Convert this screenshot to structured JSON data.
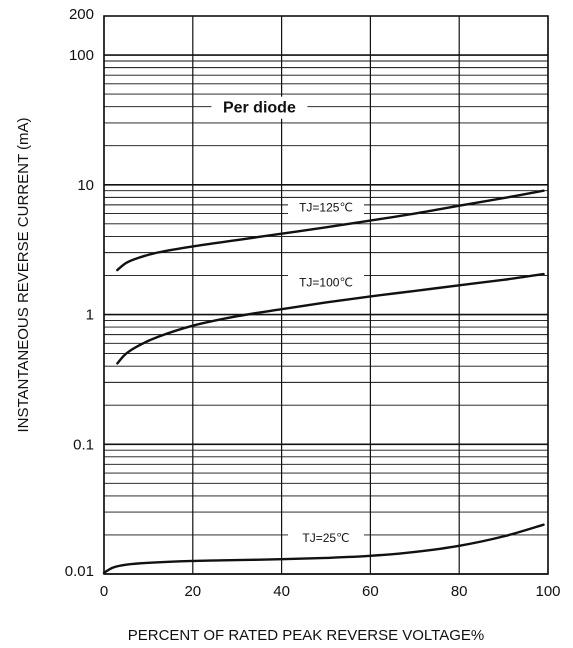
{
  "chart_data": {
    "type": "line",
    "title": "",
    "xlabel": "PERCENT OF RATED PEAK REVERSE VOLTAGE%",
    "ylabel": "INSTANTANEOUS REVERSE CURRENT (mA)",
    "xlim": [
      0,
      100
    ],
    "ylim": [
      0.01,
      200
    ],
    "yscale": "log",
    "grid": true,
    "x_ticks": [
      0,
      20,
      40,
      60,
      80,
      100
    ],
    "x_tick_labels": [
      "0",
      "20",
      "40",
      "60",
      "80",
      "100"
    ],
    "y_ticks": [
      0.01,
      0.1,
      1,
      10,
      100,
      200
    ],
    "y_tick_labels": [
      "0.01",
      "0.1",
      "1",
      "10",
      "100",
      "200"
    ],
    "annotation": "Per diode",
    "series": [
      {
        "name": "TJ=125℃",
        "x": [
          3,
          5,
          8,
          12,
          20,
          30,
          40,
          50,
          60,
          70,
          80,
          90,
          99
        ],
        "y": [
          2.2,
          2.5,
          2.75,
          3.0,
          3.35,
          3.75,
          4.2,
          4.7,
          5.3,
          6.0,
          6.9,
          7.9,
          9.0
        ]
      },
      {
        "name": "TJ=100℃",
        "x": [
          3,
          5,
          8,
          12,
          20,
          30,
          40,
          50,
          60,
          70,
          80,
          90,
          99
        ],
        "y": [
          0.42,
          0.5,
          0.58,
          0.67,
          0.82,
          0.97,
          1.1,
          1.24,
          1.38,
          1.52,
          1.68,
          1.85,
          2.05
        ]
      },
      {
        "name": "TJ=25℃",
        "x": [
          0,
          2,
          5,
          10,
          20,
          30,
          40,
          50,
          60,
          70,
          80,
          90,
          99
        ],
        "y": [
          0.0102,
          0.0112,
          0.0118,
          0.0122,
          0.0126,
          0.0128,
          0.013,
          0.0133,
          0.0138,
          0.0148,
          0.0165,
          0.0195,
          0.024
        ]
      }
    ]
  }
}
